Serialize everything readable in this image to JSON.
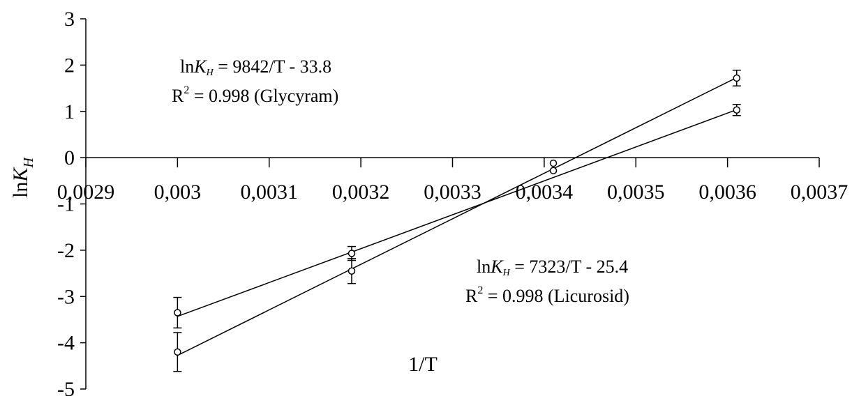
{
  "chart_data": {
    "type": "scatter",
    "title": "",
    "xlabel": "1/T",
    "ylabel": "lnK_H",
    "ylabel_parts": {
      "main": "ln",
      "italic": "K",
      "sub": "H"
    },
    "xlim": [
      0.0029,
      0.0037
    ],
    "ylim": [
      -5,
      3
    ],
    "x_ticks": [
      0.0029,
      0.003,
      0.0031,
      0.0032,
      0.0033,
      0.0034,
      0.0035,
      0.0036,
      0.0037
    ],
    "x_tick_labels": [
      "0,0029",
      "0,003",
      "0,0031",
      "0,0032",
      "0,0033",
      "0,0034",
      "0,0035",
      "0,0036",
      "0,0037"
    ],
    "y_ticks": [
      3,
      2,
      1,
      0,
      -1,
      -2,
      -3,
      -4,
      -5
    ],
    "y_tick_labels": [
      "3",
      "2",
      "1",
      "0",
      "-1",
      "-2",
      "-3",
      "-4",
      "-5"
    ],
    "grid": false,
    "legend": false,
    "series": [
      {
        "x": [
          0.003,
          0.00319,
          0.00341,
          0.00361
        ],
        "y": [
          -4.2,
          -2.45,
          -0.28,
          1.72
        ],
        "error": [
          0.42,
          0.27,
          0.0,
          0.17
        ],
        "fit": {
          "slope": 9842,
          "intercept": -33.8
        }
      },
      {
        "x": [
          0.003,
          0.00319,
          0.00341,
          0.00361
        ],
        "y": [
          -3.35,
          -2.07,
          -0.12,
          1.03
        ],
        "error": [
          0.33,
          0.15,
          0.0,
          0.12
        ],
        "fit": {
          "slope": 7323,
          "intercept": -25.4
        }
      }
    ],
    "annotations": [
      {
        "prefix": "ln",
        "italic": "K",
        "sub": "H",
        "rest": " = 9842/T - 33.8",
        "r2_prefix": "R",
        "r2_sup": "2",
        "r2_rest": " = 0.998 (Glycyram)",
        "anchor": "upper-left"
      },
      {
        "prefix": "ln",
        "italic": "K",
        "sub": "H",
        "rest": " = 7323/T - 25.4",
        "r2_prefix": "R",
        "r2_sup": "2",
        "r2_rest": " = 0.998 (Licurosid)",
        "anchor": "lower-right"
      }
    ]
  }
}
